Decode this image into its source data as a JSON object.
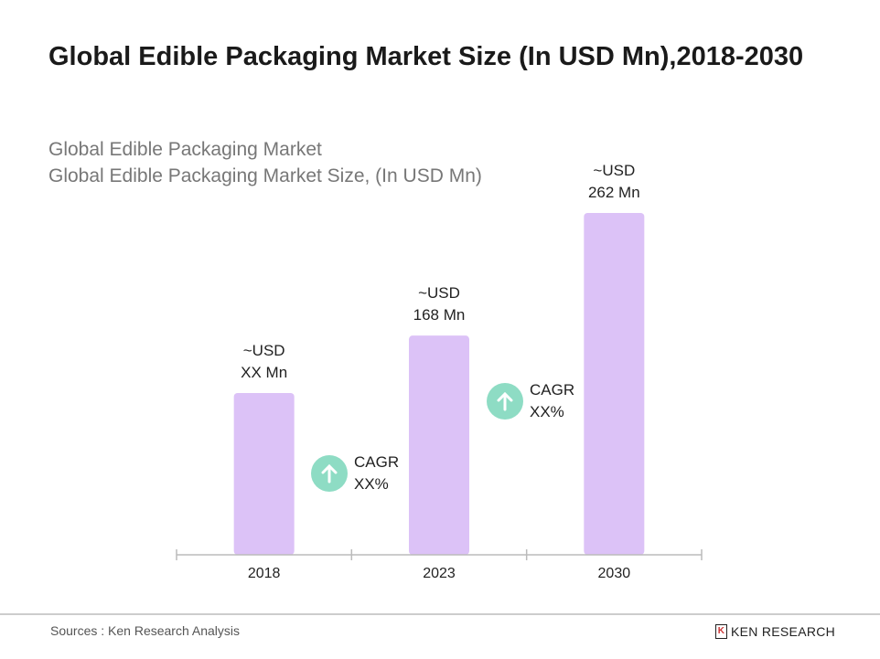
{
  "title": "Global Edible Packaging Market Size (In USD Mn),2018-2030",
  "subtitle1": "Global Edible Packaging Market",
  "subtitle2": "Global Edible Packaging Market Size, (In USD Mn)",
  "chart_data": {
    "type": "bar",
    "categories": [
      "2018",
      "2023",
      "2030"
    ],
    "values": [
      124,
      168,
      262
    ],
    "data_labels": [
      [
        "~USD",
        "XX Mn"
      ],
      [
        "~USD",
        "168 Mn"
      ],
      [
        "~USD",
        "262 Mn"
      ]
    ],
    "ylim": [
      0,
      262
    ],
    "grid": false,
    "bar_color": "#dcc2f7",
    "annotations": [
      {
        "label1": "CAGR",
        "label2": "XX%",
        "between": [
          "2018",
          "2023"
        ],
        "icon": "arrow-up-circle-icon"
      },
      {
        "label1": "CAGR",
        "label2": "XX%",
        "between": [
          "2023",
          "2030"
        ],
        "icon": "arrow-up-circle-icon"
      }
    ],
    "icon_color": "#8edcc4"
  },
  "footer": {
    "source": "Sources : Ken Research Analysis",
    "logo": "KEN RESEARCH"
  }
}
